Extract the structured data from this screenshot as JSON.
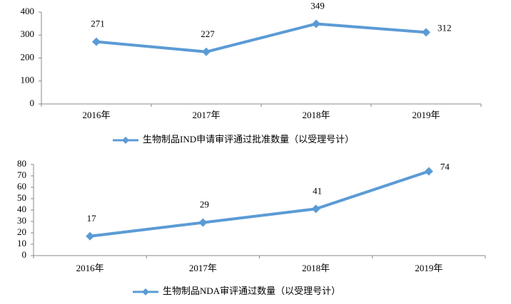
{
  "chart_data": [
    {
      "type": "line",
      "categories": [
        "2016年",
        "2017年",
        "2018年",
        "2019年"
      ],
      "series": [
        {
          "name": "生物制品IND申请审评通过批准数量（以受理号计）",
          "color": "#5b9bd5",
          "values": [
            271,
            227,
            349,
            312
          ]
        }
      ],
      "ylim": [
        0,
        400
      ],
      "yticks": [
        0,
        100,
        200,
        300,
        400
      ],
      "grid": false,
      "legend": "bottom"
    },
    {
      "type": "line",
      "categories": [
        "2016年",
        "2017年",
        "2018年",
        "2019年"
      ],
      "series": [
        {
          "name": "生物制品NDA审评通过数量（以受理号计）",
          "color": "#5b9bd5",
          "values": [
            17,
            29,
            41,
            74
          ]
        }
      ],
      "ylim": [
        0,
        80
      ],
      "yticks": [
        0,
        10,
        20,
        30,
        40,
        50,
        60,
        70,
        80
      ],
      "grid": false,
      "legend": "bottom"
    }
  ]
}
